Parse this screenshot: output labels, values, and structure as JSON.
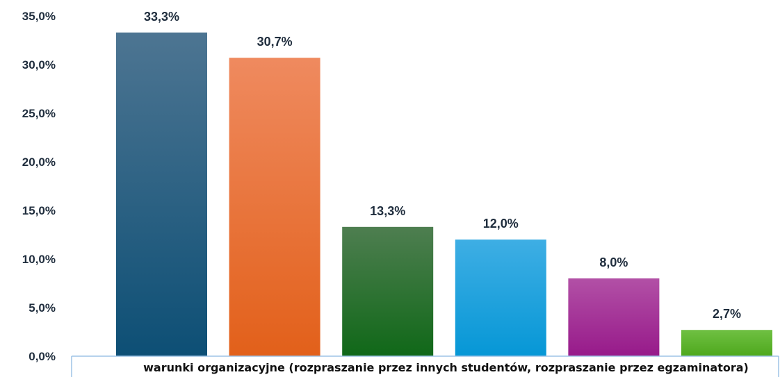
{
  "chart_data": {
    "type": "bar",
    "categories": [
      "warunki organizacyjne (rozpraszanie przez innych studentów, rozpraszanie przez egzaminatora)"
    ],
    "series": [
      {
        "value": 33.3,
        "label": "33,3%",
        "color_top": "#4d7592",
        "color_bottom": "#0d4f75"
      },
      {
        "value": 30.7,
        "label": "30,7%",
        "color_top": "#ef8a5f",
        "color_bottom": "#e2601a"
      },
      {
        "value": 13.3,
        "label": "13,3%",
        "color_top": "#4e7e50",
        "color_bottom": "#106818"
      },
      {
        "value": 12.0,
        "label": "12,0%",
        "color_top": "#3eaee4",
        "color_bottom": "#0697d6"
      },
      {
        "value": 8.0,
        "label": "8,0%",
        "color_top": "#b250a6",
        "color_bottom": "#971a8a"
      },
      {
        "value": 2.7,
        "label": "2,7%",
        "color_top": "#6fc043",
        "color_bottom": "#4ea81c"
      }
    ],
    "ylim": [
      0,
      35
    ],
    "yticks": [
      {
        "value": 0,
        "label": "0,0%"
      },
      {
        "value": 5,
        "label": "5,0%"
      },
      {
        "value": 10,
        "label": "10,0%"
      },
      {
        "value": 15,
        "label": "15,0%"
      },
      {
        "value": 20,
        "label": "20,0%"
      },
      {
        "value": 25,
        "label": "25,0%"
      },
      {
        "value": 30,
        "label": "30,0%"
      },
      {
        "value": 35,
        "label": "35,0%"
      }
    ],
    "grid": false,
    "axis_color": "#9dc3e6"
  }
}
